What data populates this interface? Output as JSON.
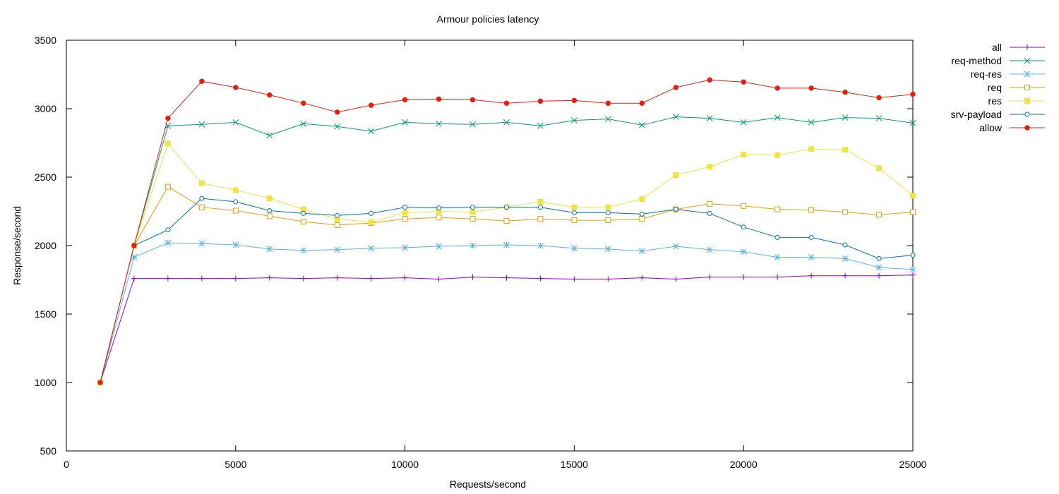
{
  "chart_data": {
    "type": "line",
    "title": "Armour policies latency",
    "xlabel": "Requests/second",
    "ylabel": "Response/second",
    "xlim": [
      0,
      25000
    ],
    "ylim": [
      500,
      3500
    ],
    "xticks": [
      0,
      5000,
      10000,
      15000,
      20000,
      25000
    ],
    "yticks": [
      500,
      1000,
      1500,
      2000,
      2500,
      3000,
      3500
    ],
    "grid": false,
    "legend_position": "outside-top-right",
    "x": [
      1000,
      2000,
      3000,
      4000,
      5000,
      6000,
      7000,
      8000,
      9000,
      10000,
      11000,
      12000,
      13000,
      14000,
      15000,
      16000,
      17000,
      18000,
      19000,
      20000,
      21000,
      22000,
      23000,
      24000,
      25000
    ],
    "series": [
      {
        "name": "all",
        "color": "#9400d3",
        "marker": "plus",
        "values": [
          1000,
          1760,
          1760,
          1760,
          1760,
          1765,
          1760,
          1765,
          1760,
          1765,
          1755,
          1770,
          1765,
          1760,
          1755,
          1755,
          1765,
          1755,
          1770,
          1770,
          1770,
          1780,
          1780,
          1780,
          1785
        ]
      },
      {
        "name": "req-method",
        "color": "#009e73",
        "marker": "cross",
        "values": [
          1000,
          2000,
          2875,
          2885,
          2900,
          2805,
          2890,
          2870,
          2835,
          2900,
          2890,
          2885,
          2900,
          2875,
          2915,
          2925,
          2880,
          2940,
          2930,
          2900,
          2935,
          2900,
          2935,
          2930,
          2895
        ]
      },
      {
        "name": "req-res",
        "color": "#56b4e9",
        "marker": "star",
        "values": [
          1000,
          1915,
          2020,
          2015,
          2005,
          1975,
          1965,
          1970,
          1980,
          1985,
          1995,
          2000,
          2005,
          2000,
          1980,
          1975,
          1960,
          1995,
          1970,
          1955,
          1915,
          1915,
          1905,
          1840,
          1825
        ]
      },
      {
        "name": "req",
        "color": "#e69f00",
        "marker": "square-open",
        "values": [
          1000,
          2000,
          2430,
          2280,
          2255,
          2215,
          2175,
          2150,
          2165,
          2195,
          2205,
          2195,
          2180,
          2195,
          2185,
          2185,
          2195,
          2265,
          2305,
          2290,
          2265,
          2260,
          2245,
          2225,
          2245
        ]
      },
      {
        "name": "res",
        "color": "#f0e442",
        "marker": "square-filled",
        "values": [
          1000,
          2000,
          2745,
          2455,
          2405,
          2345,
          2265,
          2195,
          2170,
          2240,
          2250,
          2245,
          2280,
          2320,
          2280,
          2280,
          2340,
          2515,
          2575,
          2665,
          2660,
          2705,
          2700,
          2565,
          2365
        ]
      },
      {
        "name": "srv-payload",
        "color": "#0072b2",
        "marker": "circle-open",
        "values": [
          1000,
          2000,
          2115,
          2345,
          2320,
          2255,
          2235,
          2220,
          2235,
          2280,
          2275,
          2280,
          2280,
          2280,
          2240,
          2240,
          2230,
          2265,
          2235,
          2135,
          2060,
          2060,
          2005,
          1905,
          1930
        ]
      },
      {
        "name": "allow",
        "color": "#e51e10",
        "marker": "circle-filled",
        "values": [
          1000,
          2000,
          2930,
          3200,
          3155,
          3100,
          3040,
          2975,
          3025,
          3065,
          3070,
          3065,
          3040,
          3055,
          3060,
          3040,
          3040,
          3155,
          3210,
          3195,
          3150,
          3150,
          3120,
          3080,
          3105
        ]
      }
    ]
  }
}
